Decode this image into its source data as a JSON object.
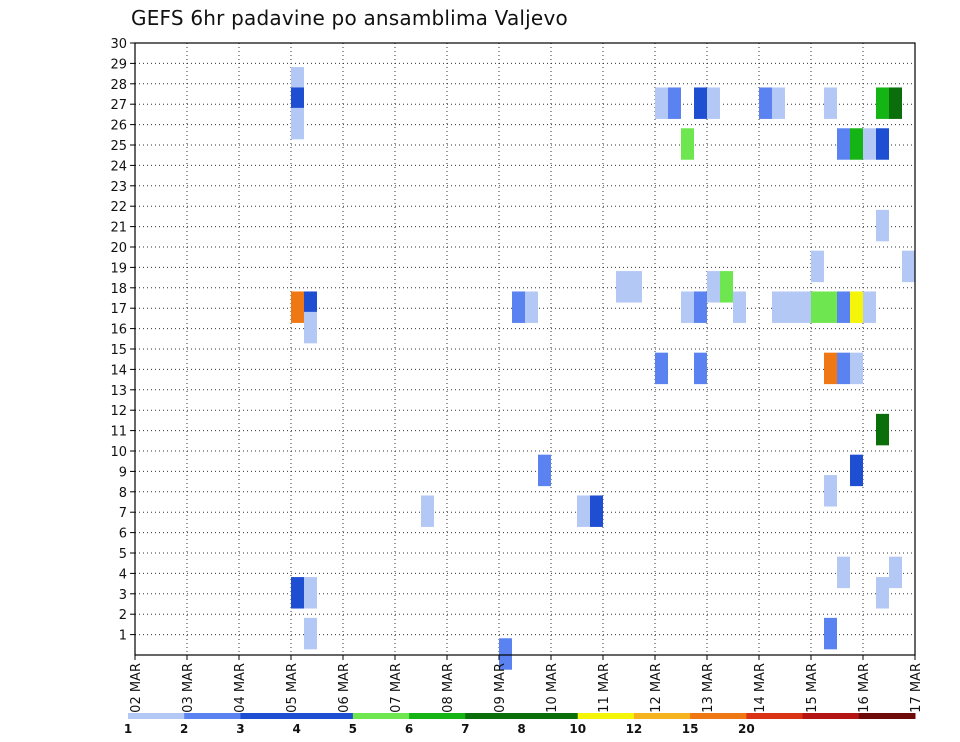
{
  "chart_data": {
    "type": "heatmap",
    "title": "GEFS 6hr padavine po ansamblima Valjevo",
    "x_tick_labels": [
      "02 MAR",
      "03 MAR",
      "04 MAR",
      "05 MAR",
      "06 MAR",
      "07 MAR",
      "08 MAR",
      "09 MAR",
      "10 MAR",
      "11 MAR",
      "12 MAR",
      "13 MAR",
      "14 MAR",
      "15 MAR",
      "16 MAR",
      "17 MAR"
    ],
    "x_range_days": [
      0,
      15
    ],
    "y_tick_labels": [
      "1",
      "2",
      "3",
      "4",
      "5",
      "6",
      "7",
      "8",
      "9",
      "10",
      "11",
      "12",
      "13",
      "14",
      "15",
      "16",
      "17",
      "18",
      "19",
      "20",
      "21",
      "22",
      "23",
      "24",
      "25",
      "26",
      "27",
      "28",
      "29",
      "30"
    ],
    "y_range": [
      0,
      30
    ],
    "grid": true,
    "colorbar": {
      "labels": [
        "1",
        "2",
        "3",
        "4",
        "5",
        "6",
        "7",
        "8",
        "10",
        "12",
        "15",
        "20"
      ],
      "colors": [
        "#b4c8f5",
        "#5a82f0",
        "#1e4ed2",
        "#1e4ed2",
        "#6ee650",
        "#14b414",
        "#0a6e0a",
        "#0a6e0a",
        "#f5f50a",
        "#f5b41e",
        "#f07814",
        "#dc3214",
        "#b41414",
        "#6e0a0a"
      ]
    },
    "cells": [
      {
        "t": 3.0,
        "m": 28,
        "c": 0
      },
      {
        "t": 3.0,
        "m": 27,
        "c": 2
      },
      {
        "t": 3.0,
        "m": 26,
        "c": 0
      },
      {
        "t": 3.0,
        "m": 17,
        "c": 10
      },
      {
        "t": 3.25,
        "m": 17,
        "c": 2
      },
      {
        "t": 3.25,
        "m": 16,
        "c": 0
      },
      {
        "t": 3.0,
        "m": 3,
        "c": 2
      },
      {
        "t": 3.25,
        "m": 3,
        "c": 0
      },
      {
        "t": 3.25,
        "m": 1,
        "c": 0
      },
      {
        "t": 5.5,
        "m": 7,
        "c": 0
      },
      {
        "t": 7.0,
        "m": 0,
        "c": 1
      },
      {
        "t": 7.25,
        "m": 17,
        "c": 1
      },
      {
        "t": 7.5,
        "m": 17,
        "c": 0
      },
      {
        "t": 7.75,
        "m": 9,
        "c": 1
      },
      {
        "t": 8.5,
        "m": 7,
        "c": 0
      },
      {
        "t": 8.75,
        "m": 7,
        "c": 2
      },
      {
        "t": 9.25,
        "m": 18,
        "c": 0
      },
      {
        "t": 9.5,
        "m": 18,
        "c": 0
      },
      {
        "t": 10.0,
        "m": 27,
        "c": 0
      },
      {
        "t": 10.25,
        "m": 27,
        "c": 1
      },
      {
        "t": 10.0,
        "m": 14,
        "c": 1
      },
      {
        "t": 10.5,
        "m": 25,
        "c": 4
      },
      {
        "t": 10.5,
        "m": 17,
        "c": 0
      },
      {
        "t": 10.75,
        "m": 17,
        "c": 1
      },
      {
        "t": 10.75,
        "m": 27,
        "c": 2
      },
      {
        "t": 11.0,
        "m": 27,
        "c": 0
      },
      {
        "t": 10.75,
        "m": 14,
        "c": 1
      },
      {
        "t": 11.0,
        "m": 18,
        "c": 0
      },
      {
        "t": 11.25,
        "m": 18,
        "c": 4
      },
      {
        "t": 11.5,
        "m": 17,
        "c": 0
      },
      {
        "t": 12.0,
        "m": 27,
        "c": 1
      },
      {
        "t": 12.25,
        "m": 27,
        "c": 0
      },
      {
        "t": 12.25,
        "m": 17,
        "c": 0
      },
      {
        "t": 12.5,
        "m": 17,
        "c": 0
      },
      {
        "t": 12.75,
        "m": 17,
        "c": 0
      },
      {
        "t": 13.0,
        "m": 19,
        "c": 0
      },
      {
        "t": 13.0,
        "m": 17,
        "c": 4
      },
      {
        "t": 13.25,
        "m": 17,
        "c": 4
      },
      {
        "t": 13.5,
        "m": 17,
        "c": 1
      },
      {
        "t": 13.75,
        "m": 17,
        "c": 8
      },
      {
        "t": 14.0,
        "m": 17,
        "c": 0
      },
      {
        "t": 13.25,
        "m": 27,
        "c": 0
      },
      {
        "t": 13.5,
        "m": 25,
        "c": 1
      },
      {
        "t": 13.75,
        "m": 25,
        "c": 5
      },
      {
        "t": 14.0,
        "m": 25,
        "c": 0
      },
      {
        "t": 14.25,
        "m": 25,
        "c": 2
      },
      {
        "t": 13.25,
        "m": 14,
        "c": 10
      },
      {
        "t": 13.5,
        "m": 14,
        "c": 1
      },
      {
        "t": 13.75,
        "m": 14,
        "c": 0
      },
      {
        "t": 13.75,
        "m": 9,
        "c": 2
      },
      {
        "t": 13.25,
        "m": 8,
        "c": 0
      },
      {
        "t": 13.5,
        "m": 4,
        "c": 0
      },
      {
        "t": 13.25,
        "m": 1,
        "c": 1
      },
      {
        "t": 14.25,
        "m": 27,
        "c": 5
      },
      {
        "t": 14.5,
        "m": 27,
        "c": 6
      },
      {
        "t": 14.25,
        "m": 21,
        "c": 0
      },
      {
        "t": 14.25,
        "m": 11,
        "c": 6
      },
      {
        "t": 14.75,
        "m": 19,
        "c": 0
      },
      {
        "t": 14.5,
        "m": 4,
        "c": 0
      },
      {
        "t": 14.25,
        "m": 3,
        "c": 0
      }
    ]
  }
}
